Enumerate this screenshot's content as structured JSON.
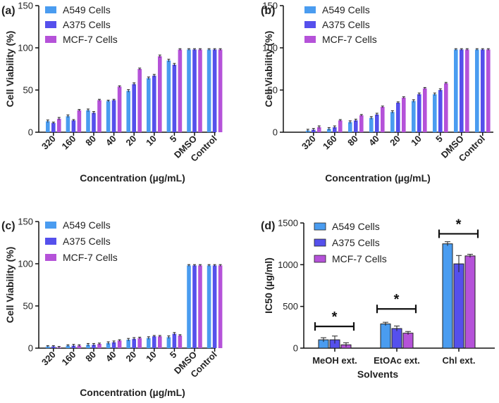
{
  "colors": {
    "a549": "#4a9cf0",
    "a375": "#5550ec",
    "mcf7": "#b552d9"
  },
  "legend": [
    "A549 Cells",
    "A375 Cells",
    "MCF-7 Cells"
  ],
  "chart_data": [
    {
      "panel_label": "(a)",
      "type": "bar",
      "title": "",
      "xlabel": "Concentration (µg/mL)",
      "ylabel": "Cell Viability (%)",
      "ylim": [
        0,
        150
      ],
      "yticks": [
        0,
        50,
        100,
        150
      ],
      "categories": [
        "320",
        "160",
        "80",
        "40",
        "20",
        "10",
        "5",
        "DMSO",
        "Control"
      ],
      "series": [
        {
          "name": "A549 Cells",
          "values": [
            13,
            19,
            26,
            37,
            49,
            64,
            85,
            98,
            98
          ],
          "errors": [
            1.5,
            1.5,
            1.5,
            1,
            1.5,
            1.5,
            1.5,
            1,
            1
          ]
        },
        {
          "name": "A375 Cells",
          "values": [
            11,
            14,
            23,
            38,
            57,
            67,
            80,
            98,
            98
          ],
          "errors": [
            1,
            1,
            1.5,
            1,
            1.5,
            1.5,
            1.5,
            1,
            1
          ]
        },
        {
          "name": "MCF-7 Cells",
          "values": [
            16,
            26,
            38,
            54,
            75,
            90,
            98,
            98,
            98
          ],
          "errors": [
            1.5,
            1,
            1,
            1,
            1,
            1.5,
            1,
            1,
            1
          ]
        }
      ],
      "significance": []
    },
    {
      "panel_label": "(b)",
      "type": "bar",
      "title": "",
      "xlabel": "Concentration (µg/mL)",
      "ylabel": "Cell Viability (%)",
      "ylim": [
        0,
        150
      ],
      "yticks": [
        0,
        50,
        100,
        150
      ],
      "categories": [
        "320",
        "160",
        "80",
        "40",
        "20",
        "10",
        "5",
        "DMSO",
        "Control"
      ],
      "series": [
        {
          "name": "A549 Cells",
          "values": [
            2,
            4,
            12,
            17,
            24,
            37,
            45,
            98,
            98
          ],
          "errors": [
            1.5,
            1.5,
            1.5,
            1.5,
            1.5,
            1.5,
            1.5,
            1,
            1
          ]
        },
        {
          "name": "A375 Cells",
          "values": [
            3,
            6,
            14,
            21,
            35,
            45,
            50,
            98,
            98
          ],
          "errors": [
            1.5,
            1.5,
            1.5,
            1.5,
            1,
            1.5,
            1.5,
            1,
            1
          ]
        },
        {
          "name": "MCF-7 Cells",
          "values": [
            6,
            14,
            20,
            30,
            41,
            52,
            58,
            98,
            98
          ],
          "errors": [
            1.5,
            1,
            1,
            1,
            1,
            1,
            1,
            1,
            1
          ]
        }
      ],
      "significance": []
    },
    {
      "panel_label": "(c)",
      "type": "bar",
      "title": "",
      "xlabel": "Concentration (µg/mL)",
      "ylabel": "Cell Viability (%)",
      "ylim": [
        0,
        150
      ],
      "yticks": [
        0,
        50,
        100,
        150
      ],
      "categories": [
        "320",
        "160",
        "80",
        "40",
        "20",
        "10",
        "5",
        "DMSO",
        "Control"
      ],
      "series": [
        {
          "name": "A549 Cells",
          "values": [
            2,
            3,
            4,
            6,
            10,
            12,
            13,
            98,
            98
          ],
          "errors": [
            1,
            1,
            1.5,
            1.5,
            1.5,
            1.5,
            1.5,
            1,
            1
          ]
        },
        {
          "name": "A375 Cells",
          "values": [
            2,
            3,
            4,
            7,
            11,
            14,
            17,
            98,
            98
          ],
          "errors": [
            1,
            1.5,
            1.5,
            1.5,
            1.5,
            1,
            1.5,
            1,
            1
          ]
        },
        {
          "name": "MCF-7 Cells",
          "values": [
            1,
            3,
            5,
            9,
            12,
            14,
            15,
            98,
            98
          ],
          "errors": [
            1,
            1,
            1,
            1,
            1,
            1,
            1,
            1,
            1
          ]
        }
      ],
      "significance": []
    },
    {
      "panel_label": "(d)",
      "type": "bar",
      "title": "",
      "xlabel": "Solvents",
      "ylabel": "IC50  (µg/ml)",
      "ylim": [
        0,
        1500
      ],
      "yticks": [
        0,
        500,
        1000,
        1500
      ],
      "categories": [
        "MeOH ext.",
        "EtOAc ext.",
        "Chl ext."
      ],
      "series": [
        {
          "name": "A549 Cells",
          "values": [
            100,
            290,
            1250
          ],
          "errors": [
            25,
            20,
            25
          ]
        },
        {
          "name": "A375 Cells",
          "values": [
            100,
            235,
            1010
          ],
          "errors": [
            45,
            30,
            100
          ]
        },
        {
          "name": "MCF-7 Cells",
          "values": [
            40,
            180,
            1105
          ],
          "errors": [
            25,
            20,
            20
          ]
        }
      ],
      "significance": [
        {
          "category_index": 0,
          "level": 260,
          "label": "*"
        },
        {
          "category_index": 1,
          "level": 470,
          "label": "*"
        },
        {
          "category_index": 2,
          "level": 1370,
          "label": "*"
        }
      ]
    }
  ]
}
